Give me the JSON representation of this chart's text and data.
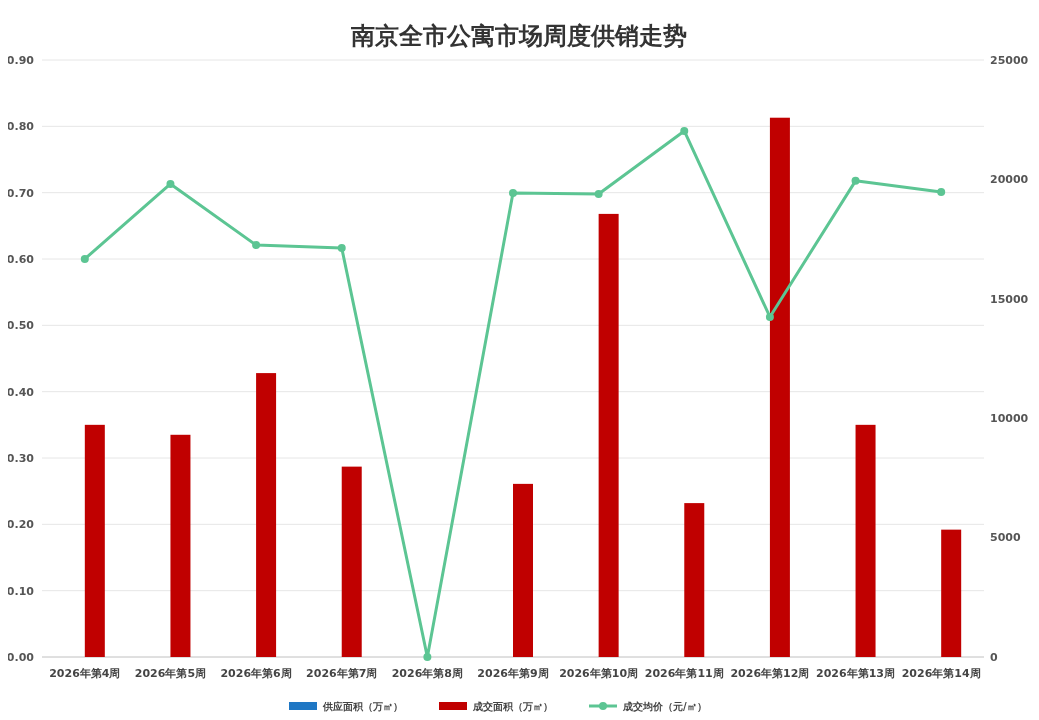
{
  "chart_data": {
    "type": "bar",
    "title": "南京全市公寓市场周度供销走势",
    "categories": [
      "2026年第4周",
      "2026年第5周",
      "2026年第6周",
      "2026年第7周",
      "2026年第8周",
      "2026年第9周",
      "2026年第10周",
      "2026年第11周",
      "2026年第12周",
      "2026年第13周",
      "2026年第14周"
    ],
    "series": [
      {
        "name": "供应面积（万㎡）",
        "color": "#1f77c4",
        "values": [
          0,
          0,
          0,
          0,
          0,
          0,
          0,
          0,
          0,
          0,
          0
        ]
      },
      {
        "name": "成交面积（万㎡）",
        "color": "#c00000",
        "values": [
          0.35,
          0.335,
          0.428,
          0.287,
          0,
          0.261,
          0.668,
          0.232,
          0.813,
          0.35,
          0.192
        ]
      },
      {
        "name": "成交均价（元/㎡）",
        "color": "#5cc593",
        "type": "line",
        "axis": "y2",
        "marker": "circle",
        "values": [
          16670,
          19810,
          17250,
          17130,
          0,
          19430,
          19390,
          22030,
          14240,
          19940,
          19470
        ]
      }
    ],
    "ylim": [
      0,
      0.9
    ],
    "yticks": [
      {
        "value": 0,
        "label": "0.00"
      },
      {
        "value": 0.1,
        "label": "0.10"
      },
      {
        "value": 0.2,
        "label": "0.20"
      },
      {
        "value": 0.3,
        "label": "0.30"
      },
      {
        "value": 0.4,
        "label": "0.40"
      },
      {
        "value": 0.5,
        "label": "0.50"
      },
      {
        "value": 0.6,
        "label": "0.60"
      },
      {
        "value": 0.7,
        "label": "0.70"
      },
      {
        "value": 0.8,
        "label": "0.80"
      },
      {
        "value": 0.9,
        "label": "0.90"
      }
    ],
    "y2lim": [
      0,
      25000
    ],
    "y2ticks": [
      0,
      5000,
      10000,
      15000,
      20000,
      25000
    ],
    "grid": "y",
    "legend": "bottom"
  }
}
